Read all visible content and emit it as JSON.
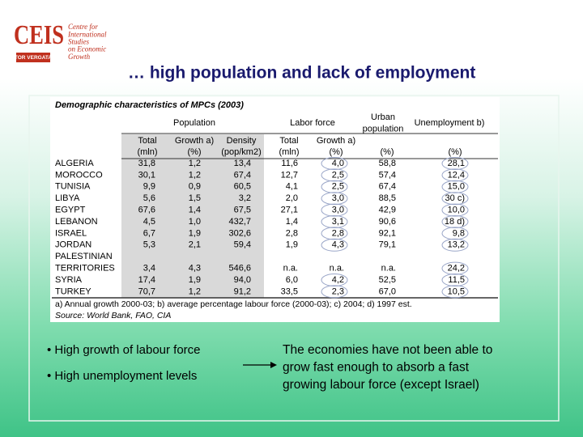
{
  "logo": {
    "name": "CEIS",
    "subtitle": [
      "Centre for",
      "International",
      "Studies",
      "on Economic",
      "Growth"
    ],
    "university": "TOR VERGATA"
  },
  "title": "… high population and lack of employment",
  "table": {
    "caption": "Demographic characteristics of MPCs (2003)",
    "groups": [
      [
        "Population"
      ],
      [
        "Labor force"
      ],
      [
        "Urban",
        "population"
      ],
      [
        "Unemployment b)"
      ]
    ],
    "columns": [
      [
        "Total",
        "(mln)"
      ],
      [
        "Growth a)",
        "(%)"
      ],
      [
        "Density",
        "(pop/km2)"
      ],
      [
        "Total",
        "(mln)"
      ],
      [
        "Growth a)",
        "(%)"
      ],
      [
        "(%)"
      ],
      [
        "(%)"
      ]
    ],
    "rows": [
      {
        "label": [
          "ALGERIA"
        ],
        "cells": [
          "31,8",
          "1,2",
          "13,4",
          "11,6",
          "4,0",
          "58,8",
          "28,1"
        ]
      },
      {
        "label": [
          "MOROCCO"
        ],
        "cells": [
          "30,1",
          "1,2",
          "67,4",
          "12,7",
          "2,5",
          "57,4",
          "12,4"
        ]
      },
      {
        "label": [
          "TUNISIA"
        ],
        "cells": [
          "9,9",
          "0,9",
          "60,5",
          "4,1",
          "2,5",
          "67,4",
          "15,0"
        ]
      },
      {
        "label": [
          "LIBYA"
        ],
        "cells": [
          "5,6",
          "1,5",
          "3,2",
          "2,0",
          "3,0",
          "88,5",
          "30 c)"
        ]
      },
      {
        "label": [
          "EGYPT"
        ],
        "cells": [
          "67,6",
          "1,4",
          "67,5",
          "27,1",
          "3,0",
          "42,9",
          "10,0"
        ]
      },
      {
        "label": [
          "LEBANON"
        ],
        "cells": [
          "4,5",
          "1,0",
          "432,7",
          "1,4",
          "3,1",
          "90,6",
          "18 d)"
        ]
      },
      {
        "label": [
          "ISRAEL"
        ],
        "cells": [
          "6,7",
          "1,9",
          "302,6",
          "2,8",
          "2,8",
          "92,1",
          "9,8"
        ]
      },
      {
        "label": [
          "JORDAN"
        ],
        "cells": [
          "5,3",
          "2,1",
          "59,4",
          "1,9",
          "4,3",
          "79,1",
          "13,2"
        ]
      },
      {
        "label": [
          "PALESTINIAN",
          "TERRITORIES"
        ],
        "cells": [
          "3,4",
          "4,3",
          "546,6",
          "n.a.",
          "n.a.",
          "n.a.",
          "24,2"
        ]
      },
      {
        "label": [
          "SYRIA"
        ],
        "cells": [
          "17,4",
          "1,9",
          "94,0",
          "6,0",
          "4,2",
          "52,5",
          "11,5"
        ]
      },
      {
        "label": [
          "TURKEY"
        ],
        "cells": [
          "70,7",
          "1,2",
          "91,2",
          "33,5",
          "2,3",
          "67,0",
          "10,5"
        ]
      }
    ],
    "notes": "a) Annual growth 2000-03; b) average percentage labour force (2000-03); c) 2004; d) 1997 est.",
    "source": "Source: World Bank, FAO, CIA"
  },
  "bullets": [
    "• High growth of labour force",
    "• High unemployment levels"
  ],
  "conclusion": [
    "The economies have not been able to",
    "grow fast enough to absorb a fast",
    "growing labour force (except Israel)"
  ]
}
